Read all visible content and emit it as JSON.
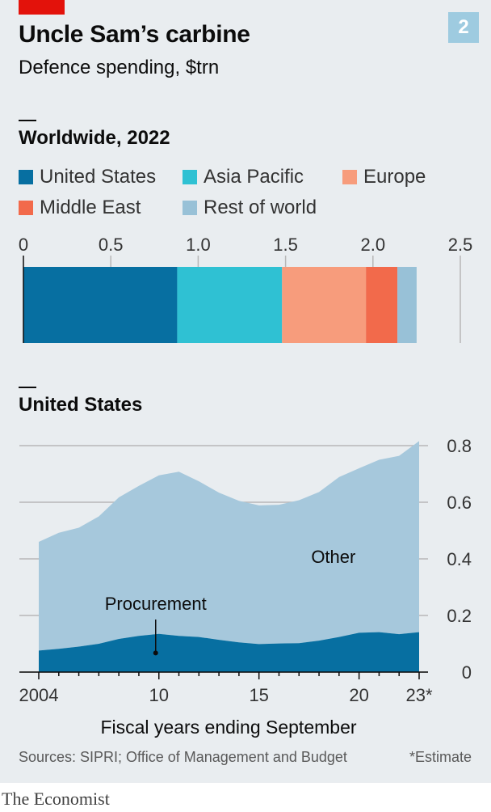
{
  "header": {
    "title": "Uncle Sam’s carbine",
    "subtitle": "Defence spending, $trn",
    "badge": "2"
  },
  "footer": {
    "source": "Sources: SIPRI; Office of Management and Budget",
    "note": "*Estimate",
    "brand": "The Economist"
  },
  "chart_data": [
    {
      "type": "bar",
      "orientation": "horizontal-stacked",
      "title": "Worldwide, 2022",
      "categories": [
        "2022"
      ],
      "series": [
        {
          "name": "United States",
          "values": [
            0.88
          ],
          "color": "#076fa1"
        },
        {
          "name": "Asia Pacific",
          "values": [
            0.6
          ],
          "color": "#2fc1d3"
        },
        {
          "name": "Europe",
          "values": [
            0.48
          ],
          "color": "#f79c7c"
        },
        {
          "name": "Middle East",
          "values": [
            0.18
          ],
          "color": "#f26a4b"
        },
        {
          "name": "Rest of world",
          "values": [
            0.11
          ],
          "color": "#98c1d7"
        }
      ],
      "xlim": [
        0,
        2.5
      ],
      "xticks": [
        "0",
        "0.5",
        "1.0",
        "1.5",
        "2.0",
        "2.5"
      ],
      "xtick_values": [
        0,
        0.5,
        1.0,
        1.5,
        2.0,
        2.5
      ],
      "grid": true,
      "legend": "top"
    },
    {
      "type": "area",
      "stacked": true,
      "title": "United States",
      "xlabel": "Fiscal years ending September",
      "x": [
        2004,
        2005,
        2006,
        2007,
        2008,
        2009,
        2010,
        2011,
        2012,
        2013,
        2014,
        2015,
        2016,
        2017,
        2018,
        2019,
        2020,
        2021,
        2022,
        2023
      ],
      "series": [
        {
          "name": "Procurement",
          "color": "#076fa1",
          "values": [
            0.076,
            0.082,
            0.09,
            0.1,
            0.117,
            0.128,
            0.135,
            0.128,
            0.124,
            0.114,
            0.105,
            0.099,
            0.101,
            0.102,
            0.111,
            0.124,
            0.139,
            0.141,
            0.134,
            0.141
          ]
        },
        {
          "name": "Other",
          "color": "#a6c8dc",
          "values": [
            0.384,
            0.41,
            0.42,
            0.45,
            0.5,
            0.53,
            0.56,
            0.58,
            0.55,
            0.52,
            0.5,
            0.49,
            0.49,
            0.505,
            0.525,
            0.565,
            0.581,
            0.609,
            0.63,
            0.675
          ]
        }
      ],
      "ylim": [
        0,
        0.8
      ],
      "yticks": [
        "0",
        "0.2",
        "0.4",
        "0.6",
        "0.8"
      ],
      "ytick_values": [
        0,
        0.2,
        0.4,
        0.6,
        0.8
      ],
      "xticks": [
        "2004",
        "10",
        "15",
        "20",
        "23*"
      ],
      "xtick_values": [
        2004,
        2010,
        2015,
        2020,
        2023
      ],
      "grid": true,
      "annotations": [
        {
          "text": "Procurement",
          "x": 2010
        },
        {
          "text": "Other",
          "x": 2019
        }
      ]
    }
  ]
}
